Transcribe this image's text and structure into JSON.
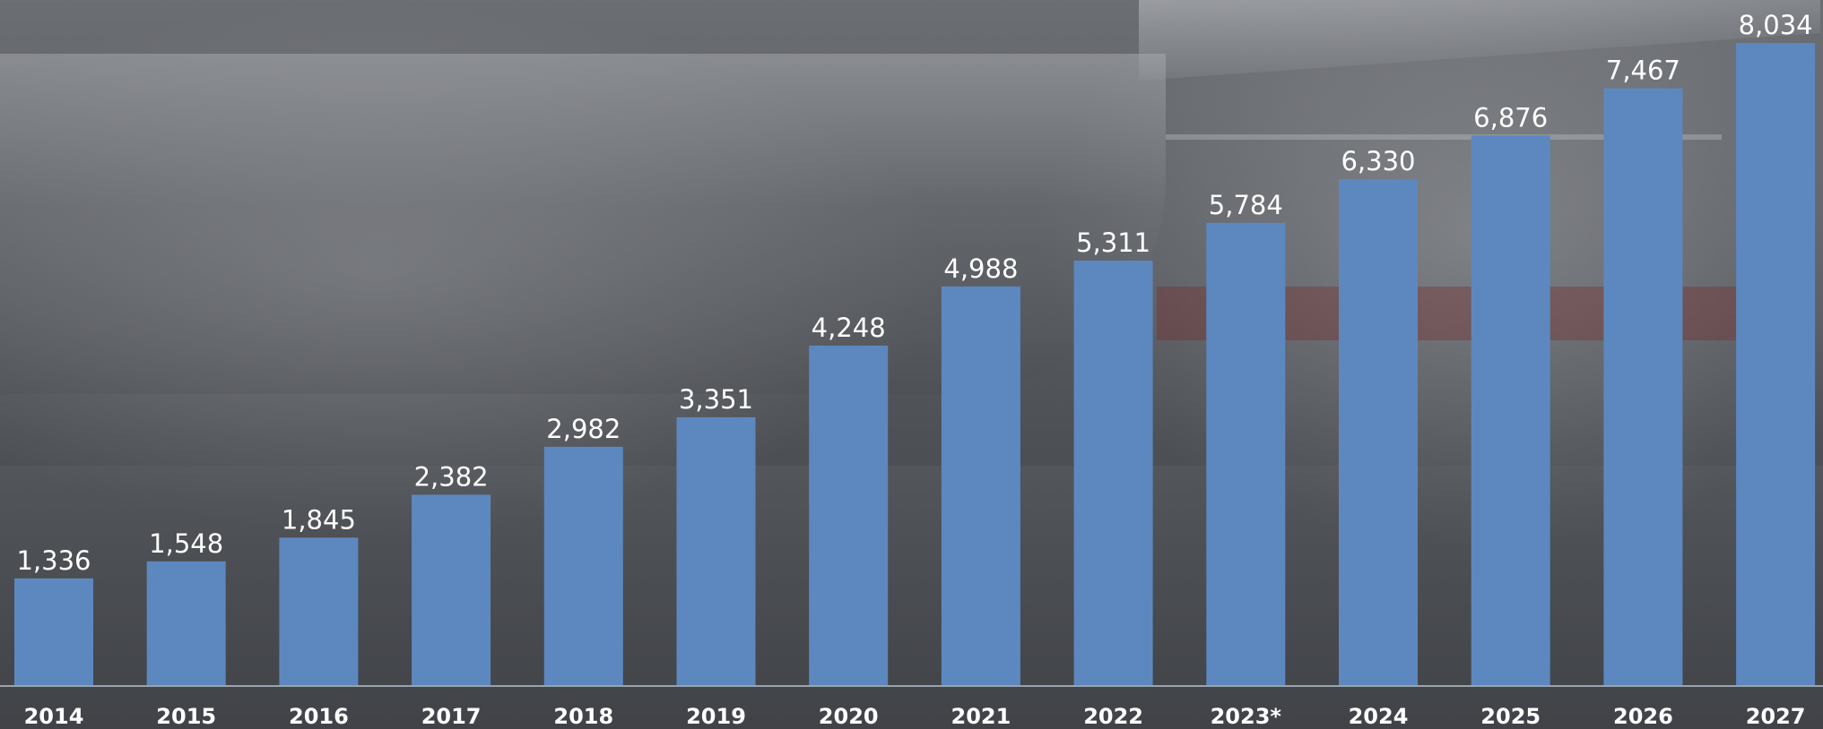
{
  "chart_data": {
    "type": "bar",
    "categories": [
      "2014",
      "2015",
      "2016",
      "2017",
      "2018",
      "2019",
      "2020",
      "2021",
      "2022",
      "2023*",
      "2024",
      "2025",
      "2026",
      "2027"
    ],
    "values": [
      1336,
      1548,
      1845,
      2382,
      2982,
      3351,
      4248,
      4988,
      5311,
      5784,
      6330,
      6876,
      7467,
      8034
    ],
    "value_labels": [
      "1,336",
      "1,548",
      "1,845",
      "2,382",
      "2,982",
      "3,351",
      "4,248",
      "4,988",
      "5,311",
      "5,784",
      "6,330",
      "6,876",
      "7,467",
      "8,034"
    ],
    "title": "",
    "xlabel": "",
    "ylabel": "",
    "ylim": [
      0,
      8034
    ],
    "grid": false,
    "legend": "none",
    "bar_color": "#5d88bf",
    "label_color": "#ffffff"
  }
}
